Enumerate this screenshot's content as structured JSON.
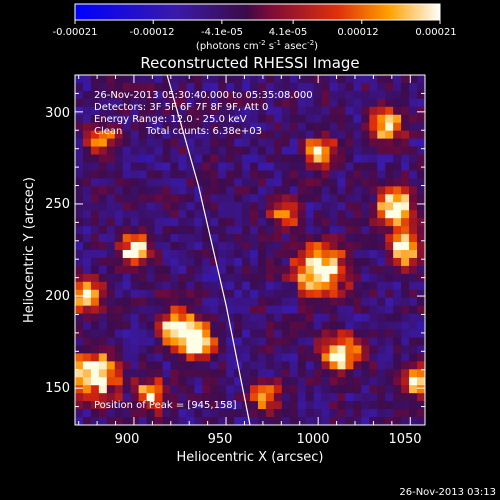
{
  "colorbar": {
    "tick_labels": [
      "-0.00021",
      "-0.00012",
      "-4.1e-05",
      "4.1e-05",
      "0.00012",
      "0.00021"
    ],
    "tick_values": [
      -0.00021,
      -0.00012,
      -4.1e-05,
      4.1e-05,
      0.00012,
      0.00021
    ],
    "units_line": "(photons cm",
    "units_exp1": "-2",
    "units_mid": " s",
    "units_exp2": "-1",
    "units_mid2": " asec",
    "units_exp3": "-2",
    "units_close": ")",
    "range": [
      -0.00021,
      0.00021
    ]
  },
  "chart_data": {
    "type": "heatmap",
    "title": "Reconstructed RHESSI Image",
    "xlabel": "Heliocentric X (arcsec)",
    "ylabel": "Heliocentric Y (arcsec)",
    "xlim": [
      868,
      1058
    ],
    "ylim": [
      130,
      320
    ],
    "x_ticks": [
      900,
      950,
      1000,
      1050
    ],
    "y_ticks": [
      150,
      200,
      250,
      300
    ],
    "limb_x": [
      918,
      935,
      950,
      963
    ],
    "limb_y": [
      320,
      260,
      195,
      130
    ],
    "peak": [
      945,
      158
    ],
    "annotations": {
      "time_range": "26-Nov-2013 05:30:40.000 to 05:35:08.000",
      "detectors": "Detectors: 3F 5F 6F 7F 8F 9F, Att 0",
      "energy": "Energy Range: 12.0 - 25.0 keV",
      "clean_label": "Clean",
      "counts": "Total counts: 6.38e+03",
      "peak_label": "Position of Peak = [945,158]"
    }
  },
  "footer": {
    "timestamp": "26-Nov-2013 03:13"
  },
  "colors": {
    "background": "#000000",
    "limb_line": "#ffffff"
  }
}
